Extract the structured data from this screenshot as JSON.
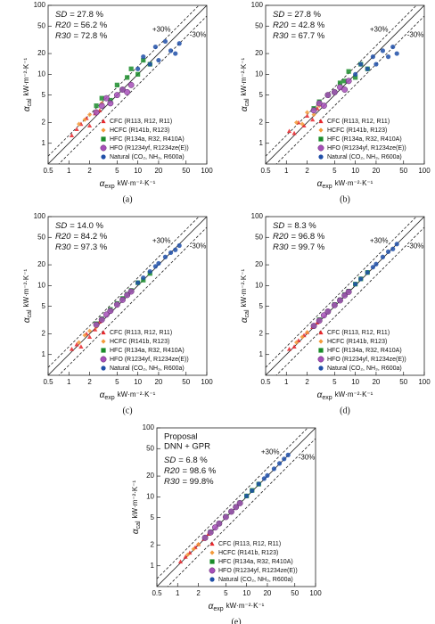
{
  "chart_data": [
    {
      "type": "scatter",
      "caption": "(a)",
      "log_scale": true,
      "legend": "lower right",
      "xlim": [
        0.5,
        100
      ],
      "ylim": [
        0.5,
        100
      ],
      "xticks": [
        0.5,
        1,
        2,
        5,
        10,
        20,
        50,
        100
      ],
      "yticks": [
        1,
        2,
        5,
        10,
        20,
        50,
        100
      ],
      "xlabel": {
        "symbol": "α",
        "sub": "exp",
        "unit": "kW·m⁻²·K⁻¹"
      },
      "ylabel": {
        "symbol": "α",
        "sub": "cal",
        "unit": "kW·m⁻²·K⁻¹"
      },
      "error_band": {
        "value": 30,
        "plus_label": "+30%",
        "minus_label": "-30%"
      },
      "notes": [],
      "stats": [
        {
          "name": "SD",
          "text": "= 27.8 %"
        },
        {
          "name": "R20",
          "text": "= 56.2 %"
        },
        {
          "name": "R30",
          "text": "= 72.8 %"
        }
      ],
      "series": [
        {
          "name": "CFC (R113, R12, R11)",
          "color": "#e8262b",
          "marker": "triangle",
          "x": [
            1.1,
            1.3,
            1.5,
            1.8,
            2.0,
            2.4,
            2.8
          ],
          "values": [
            1.3,
            1.6,
            1.9,
            2.3,
            1.8,
            2.7,
            3.0
          ]
        },
        {
          "name": "HCFC (R141b, R123)",
          "color": "#f39a3a",
          "marker": "diamond",
          "x": [
            1.4,
            1.7,
            2.0,
            2.5,
            3.0
          ],
          "values": [
            1.9,
            2.2,
            2.6,
            2.9,
            3.8
          ]
        },
        {
          "name": "HFC (R134a, R32, R410A)",
          "color": "#1a8c2a",
          "marker": "square",
          "x": [
            2.5,
            3,
            4,
            5,
            6,
            7,
            8,
            10,
            12,
            15
          ],
          "values": [
            3.5,
            4.5,
            4.2,
            7,
            6,
            9,
            12,
            10,
            16,
            14
          ]
        },
        {
          "name": "HFO (R1234yf, R1234ze(E))",
          "color": "#a64fb8",
          "marker": "circle",
          "x": [
            2.5,
            3,
            3.5,
            4,
            5,
            6,
            7,
            8
          ],
          "values": [
            2.8,
            3.5,
            4.5,
            3.8,
            5,
            6,
            5.5,
            7
          ]
        },
        {
          "name": "Natural (CO₂, NH₃, R600a)",
          "color": "#1f4fa8",
          "marker": "dot",
          "x": [
            10,
            12,
            15,
            18,
            20,
            25,
            30,
            35,
            40
          ],
          "values": [
            12,
            18,
            14,
            25,
            16,
            30,
            22,
            20,
            28
          ]
        }
      ]
    },
    {
      "type": "scatter",
      "caption": "(b)",
      "log_scale": true,
      "legend": "lower right",
      "xlim": [
        0.5,
        100
      ],
      "ylim": [
        0.5,
        100
      ],
      "xticks": [
        0.5,
        1,
        2,
        5,
        10,
        20,
        50,
        100
      ],
      "yticks": [
        1,
        2,
        5,
        10,
        20,
        50,
        100
      ],
      "xlabel": {
        "symbol": "α",
        "sub": "exp",
        "unit": "kW·m⁻²·K⁻¹"
      },
      "ylabel": {
        "symbol": "α",
        "sub": "cal",
        "unit": "kW·m⁻²·K⁻¹"
      },
      "error_band": {
        "value": 30,
        "plus_label": "+30%",
        "minus_label": "-30%"
      },
      "notes": [],
      "stats": [
        {
          "name": "SD",
          "text": "= 27.8 %"
        },
        {
          "name": "R20",
          "text": "= 42.8 %"
        },
        {
          "name": "R30",
          "text": "= 67.7 %"
        }
      ],
      "series": [
        {
          "name": "CFC (R113, R12, R11)",
          "color": "#e8262b",
          "marker": "triangle",
          "x": [
            1.1,
            1.3,
            1.5,
            1.8,
            2.0,
            2.4,
            2.8
          ],
          "values": [
            1.5,
            1.4,
            2.0,
            1.8,
            2.5,
            2.2,
            3.2
          ]
        },
        {
          "name": "HCFC (R141b, R123)",
          "color": "#f39a3a",
          "marker": "diamond",
          "x": [
            1.4,
            1.7,
            2.0,
            2.5,
            3.0
          ],
          "values": [
            2.0,
            1.9,
            2.8,
            2.6,
            3.5
          ]
        },
        {
          "name": "HFC (R134a, R32, R410A)",
          "color": "#1a8c2a",
          "marker": "square",
          "x": [
            2.5,
            3,
            4,
            5,
            6,
            7,
            8,
            10,
            12,
            15
          ],
          "values": [
            3.2,
            4.0,
            5.0,
            5.5,
            7.5,
            8,
            11,
            9,
            14,
            12
          ]
        },
        {
          "name": "HFO (R1234yf, R1234ze(E))",
          "color": "#a64fb8",
          "marker": "circle",
          "x": [
            2.5,
            3,
            3.5,
            4,
            5,
            6,
            7,
            8
          ],
          "values": [
            3.0,
            3.8,
            3.5,
            5.0,
            5.5,
            6.5,
            6.0,
            8.0
          ]
        },
        {
          "name": "Natural (CO₂, NH₃, R600a)",
          "color": "#1f4fa8",
          "marker": "dot",
          "x": [
            10,
            12,
            15,
            18,
            20,
            25,
            30,
            35,
            40
          ],
          "values": [
            10,
            14,
            12,
            18,
            14,
            22,
            18,
            25,
            20
          ]
        }
      ]
    },
    {
      "type": "scatter",
      "caption": "(c)",
      "log_scale": true,
      "legend": "lower right",
      "xlim": [
        0.5,
        100
      ],
      "ylim": [
        0.5,
        100
      ],
      "xticks": [
        0.5,
        1,
        2,
        5,
        10,
        20,
        50,
        100
      ],
      "yticks": [
        1,
        2,
        5,
        10,
        20,
        50,
        100
      ],
      "xlabel": {
        "symbol": "α",
        "sub": "exp",
        "unit": "kW·m⁻²·K⁻¹"
      },
      "ylabel": {
        "symbol": "α",
        "sub": "cal",
        "unit": "kW·m⁻²·K⁻¹"
      },
      "error_band": {
        "value": 30,
        "plus_label": "+30%",
        "minus_label": "-30%"
      },
      "notes": [],
      "stats": [
        {
          "name": "SD",
          "text": "= 14.0 %"
        },
        {
          "name": "R20",
          "text": "= 84.2 %"
        },
        {
          "name": "R30",
          "text": "= 97.3 %"
        }
      ],
      "series": [
        {
          "name": "CFC (R113, R12, R11)",
          "color": "#e8262b",
          "marker": "triangle",
          "x": [
            1.1,
            1.3,
            1.5,
            1.8,
            2.0,
            2.4,
            2.8
          ],
          "values": [
            1.2,
            1.4,
            1.3,
            2.0,
            1.8,
            2.3,
            3.0
          ]
        },
        {
          "name": "HCFC (R141b, R123)",
          "color": "#f39a3a",
          "marker": "diamond",
          "x": [
            1.4,
            1.7,
            2.0,
            2.5,
            3.0
          ],
          "values": [
            1.5,
            1.9,
            2.2,
            2.5,
            3.2
          ]
        },
        {
          "name": "HFC (R134a, R32, R410A)",
          "color": "#1a8c2a",
          "marker": "square",
          "x": [
            2.5,
            3,
            4,
            5,
            6,
            7,
            8,
            10,
            12,
            15
          ],
          "values": [
            2.8,
            3.3,
            4.5,
            5.5,
            6.5,
            7.5,
            8.5,
            11,
            12,
            15
          ]
        },
        {
          "name": "HFO (R1234yf, R1234ze(E))",
          "color": "#a64fb8",
          "marker": "circle",
          "x": [
            2.5,
            3,
            3.5,
            4,
            5,
            6,
            7,
            8
          ],
          "values": [
            2.7,
            3.2,
            3.8,
            4.3,
            5.3,
            6.2,
            7.3,
            8.2
          ]
        },
        {
          "name": "Natural (CO₂, NH₃, R600a)",
          "color": "#1f4fa8",
          "marker": "dot",
          "x": [
            10,
            12,
            15,
            18,
            20,
            25,
            30,
            35,
            40
          ],
          "values": [
            11,
            13,
            16,
            19,
            21,
            26,
            30,
            33,
            38
          ]
        }
      ]
    },
    {
      "type": "scatter",
      "caption": "(d)",
      "log_scale": true,
      "legend": "lower right",
      "xlim": [
        0.5,
        100
      ],
      "ylim": [
        0.5,
        100
      ],
      "xticks": [
        0.5,
        1,
        2,
        5,
        10,
        20,
        50,
        100
      ],
      "yticks": [
        1,
        2,
        5,
        10,
        20,
        50,
        100
      ],
      "xlabel": {
        "symbol": "α",
        "sub": "exp",
        "unit": "kW·m⁻²·K⁻¹"
      },
      "ylabel": {
        "symbol": "α",
        "sub": "cal",
        "unit": "kW·m⁻²·K⁻¹"
      },
      "error_band": {
        "value": 30,
        "plus_label": "+30%",
        "minus_label": "-30%"
      },
      "notes": [],
      "stats": [
        {
          "name": "SD",
          "text": "= 8.3 %"
        },
        {
          "name": "R20",
          "text": "= 96.8 %"
        },
        {
          "name": "R30",
          "text": "= 99.7 %"
        }
      ],
      "series": [
        {
          "name": "CFC (R113, R12, R11)",
          "color": "#e8262b",
          "marker": "triangle",
          "x": [
            1.1,
            1.3,
            1.5,
            1.8,
            2.0,
            2.4,
            2.8
          ],
          "values": [
            1.2,
            1.3,
            1.6,
            1.9,
            2.1,
            2.5,
            2.9
          ]
        },
        {
          "name": "HCFC (R141b, R123)",
          "color": "#f39a3a",
          "marker": "diamond",
          "x": [
            1.4,
            1.7,
            2.0,
            2.5,
            3.0
          ],
          "values": [
            1.5,
            1.8,
            2.1,
            2.6,
            3.1
          ]
        },
        {
          "name": "HFC (R134a, R32, R410A)",
          "color": "#1a8c2a",
          "marker": "square",
          "x": [
            2.5,
            3,
            4,
            5,
            6,
            7,
            8,
            10,
            12,
            15
          ],
          "values": [
            2.6,
            3.2,
            4.2,
            5.3,
            6.2,
            7.4,
            8.3,
            10.5,
            12.5,
            15.5
          ]
        },
        {
          "name": "HFO (R1234yf, R1234ze(E))",
          "color": "#a64fb8",
          "marker": "circle",
          "x": [
            2.5,
            3,
            3.5,
            4,
            5,
            6,
            7,
            8
          ],
          "values": [
            2.6,
            3.1,
            3.7,
            4.2,
            5.2,
            6.1,
            7.2,
            8.1
          ]
        },
        {
          "name": "Natural (CO₂, NH₃, R600a)",
          "color": "#1f4fa8",
          "marker": "dot",
          "x": [
            10,
            12,
            15,
            18,
            20,
            25,
            30,
            35,
            40
          ],
          "values": [
            10.5,
            12.5,
            15.5,
            18.5,
            20.5,
            26,
            31,
            34,
            40
          ]
        }
      ]
    },
    {
      "type": "scatter",
      "caption": "(e)",
      "log_scale": true,
      "legend": "lower right",
      "xlim": [
        0.5,
        100
      ],
      "ylim": [
        0.5,
        100
      ],
      "xticks": [
        0.5,
        1,
        2,
        5,
        10,
        20,
        50,
        100
      ],
      "yticks": [
        1,
        2,
        5,
        10,
        20,
        50,
        100
      ],
      "xlabel": {
        "symbol": "α",
        "sub": "exp",
        "unit": "kW·m⁻²·K⁻¹"
      },
      "ylabel": {
        "symbol": "α",
        "sub": "cal",
        "unit": "kW·m⁻²·K⁻¹"
      },
      "error_band": {
        "value": 30,
        "plus_label": "+30%",
        "minus_label": "-30%"
      },
      "notes": [
        "Proposal",
        "DNN + GPR"
      ],
      "stats": [
        {
          "name": "SD",
          "text": "= 6.8 %"
        },
        {
          "name": "R20",
          "text": "= 98.6 %"
        },
        {
          "name": "R30",
          "text": "= 99.8%"
        }
      ],
      "series": [
        {
          "name": "CFC (R113, R12, R11)",
          "color": "#e8262b",
          "marker": "triangle",
          "x": [
            1.1,
            1.3,
            1.5,
            1.8,
            2.0,
            2.4,
            2.8
          ],
          "values": [
            1.15,
            1.35,
            1.55,
            1.85,
            2.05,
            2.45,
            2.9
          ]
        },
        {
          "name": "HCFC (R141b, R123)",
          "color": "#f39a3a",
          "marker": "diamond",
          "x": [
            1.4,
            1.7,
            2.0,
            2.5,
            3.0
          ],
          "values": [
            1.45,
            1.75,
            2.05,
            2.55,
            3.05
          ]
        },
        {
          "name": "HFC (R134a, R32, R410A)",
          "color": "#1a8c2a",
          "marker": "square",
          "x": [
            2.5,
            3,
            4,
            5,
            6,
            7,
            8,
            10,
            12,
            15
          ],
          "values": [
            2.55,
            3.1,
            4.1,
            5.2,
            6.1,
            7.2,
            8.2,
            10.3,
            12.4,
            15.3
          ]
        },
        {
          "name": "HFO (R1234yf, R1234ze(E))",
          "color": "#a64fb8",
          "marker": "circle",
          "x": [
            2.5,
            3,
            3.5,
            4,
            5,
            6,
            7,
            8
          ],
          "values": [
            2.55,
            3.05,
            3.6,
            4.1,
            5.1,
            6.1,
            7.1,
            8.1
          ]
        },
        {
          "name": "Natural (CO₂, NH₃, R600a)",
          "color": "#1f4fa8",
          "marker": "dot",
          "x": [
            10,
            12,
            15,
            18,
            20,
            25,
            30,
            35,
            40
          ],
          "values": [
            10.3,
            12.3,
            15.4,
            18.4,
            20.4,
            25.5,
            30.5,
            35.5,
            40.5
          ]
        }
      ]
    }
  ]
}
